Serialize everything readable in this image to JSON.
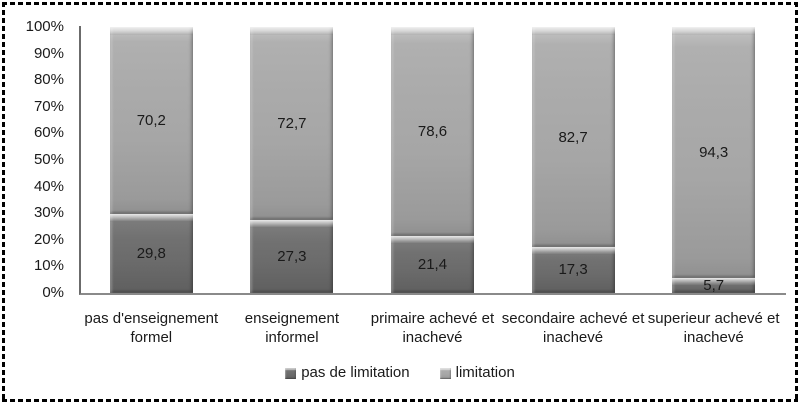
{
  "figure": {
    "background": "#ffffff",
    "border_color": "#000000",
    "colors": {
      "bar_dark": "#6b6b6b",
      "bar_light": "#ababab",
      "axis": "#8a8a8a",
      "text": "#1a1a1a"
    }
  },
  "chart_data": {
    "type": "bar",
    "subtype": "stacked-100-percent",
    "title": "",
    "xlabel": "",
    "ylabel": "",
    "categories": [
      "pas d'enseignement formel",
      "enseignement informel",
      "primaire achevé et inachevé",
      "secondaire achevé et inachevé",
      "superieur achevé et inachevé"
    ],
    "categories_lines": [
      [
        "pas d'enseignement",
        "formel"
      ],
      [
        "enseignement",
        "informel"
      ],
      [
        "primaire achevé et",
        "inachevé"
      ],
      [
        "secondaire achevé et",
        "inachevé"
      ],
      [
        "superieur achevé et",
        "inachevé"
      ]
    ],
    "series": [
      {
        "name": "pas de limitation",
        "values": [
          29.8,
          27.3,
          21.4,
          17.3,
          5.7
        ],
        "labels": [
          "29,8",
          "27,3",
          "21,4",
          "17,3",
          "5,7"
        ],
        "color": "#6b6b6b"
      },
      {
        "name": "limitation",
        "values": [
          70.2,
          72.7,
          78.6,
          82.7,
          94.3
        ],
        "labels": [
          "70,2",
          "72,7",
          "78,6",
          "82,7",
          "94,3"
        ],
        "color": "#ababab"
      }
    ],
    "y_ticks": [
      "0%",
      "10%",
      "20%",
      "30%",
      "40%",
      "50%",
      "60%",
      "70%",
      "80%",
      "90%",
      "100%"
    ],
    "ylim": [
      0,
      100
    ],
    "grid": false,
    "legend_position": "bottom"
  }
}
